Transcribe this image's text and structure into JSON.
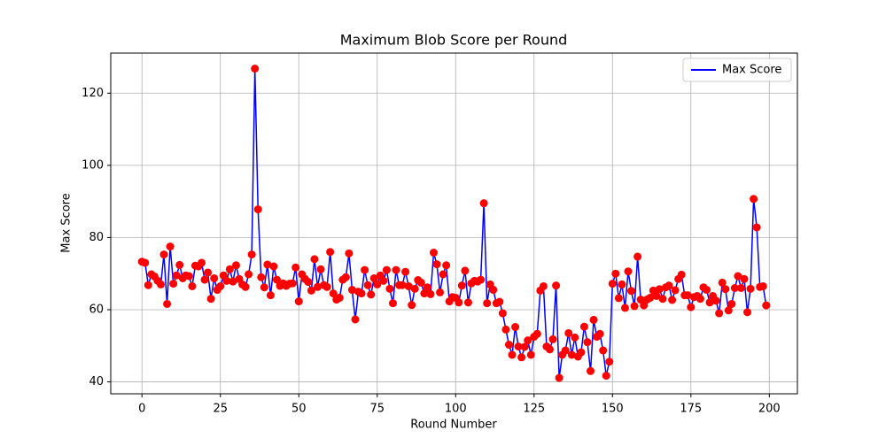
{
  "chart_data": {
    "type": "line",
    "title": "Maximum Blob Score per Round",
    "x_label": "Round Number",
    "y_label": "Max Score",
    "x": [
      0,
      1,
      2,
      3,
      4,
      5,
      6,
      7,
      8,
      9,
      10,
      11,
      12,
      13,
      14,
      15,
      16,
      17,
      18,
      19,
      20,
      21,
      22,
      23,
      24,
      25,
      26,
      27,
      28,
      29,
      30,
      31,
      32,
      33,
      34,
      35,
      36,
      37,
      38,
      39,
      40,
      41,
      42,
      43,
      44,
      45,
      46,
      47,
      48,
      49,
      50,
      51,
      52,
      53,
      54,
      55,
      56,
      57,
      58,
      59,
      60,
      61,
      62,
      63,
      64,
      65,
      66,
      67,
      68,
      69,
      70,
      71,
      72,
      73,
      74,
      75,
      76,
      77,
      78,
      79,
      80,
      81,
      82,
      83,
      84,
      85,
      86,
      87,
      88,
      89,
      90,
      91,
      92,
      93,
      94,
      95,
      96,
      97,
      98,
      99,
      100,
      101,
      102,
      103,
      104,
      105,
      106,
      107,
      108,
      109,
      110,
      111,
      112,
      113,
      114,
      115,
      116,
      117,
      118,
      119,
      120,
      121,
      122,
      123,
      124,
      125,
      126,
      127,
      128,
      129,
      130,
      131,
      132,
      133,
      134,
      135,
      136,
      137,
      138,
      139,
      140,
      141,
      142,
      143,
      144,
      145,
      146,
      147,
      148,
      149,
      150,
      151,
      152,
      153,
      154,
      155,
      156,
      157,
      158,
      159,
      160,
      161,
      162,
      163,
      164,
      165,
      166,
      167,
      168,
      169,
      170,
      171,
      172,
      173,
      174,
      175,
      176,
      177,
      178,
      179,
      180,
      181,
      182,
      183,
      184,
      185,
      186,
      187,
      188,
      189,
      190,
      191,
      192,
      193,
      194,
      195,
      196,
      197,
      198,
      199
    ],
    "series": [
      {
        "name": "Max Score",
        "color": "blue",
        "marker_color": "red",
        "values": [
          73.3,
          73,
          66.8,
          69.8,
          69.2,
          68,
          67,
          75.3,
          61.6,
          77.5,
          67.2,
          69.5,
          72.4,
          68.7,
          69.5,
          69.3,
          66.5,
          72.2,
          72,
          73,
          68.3,
          70.3,
          63,
          68.7,
          65.5,
          66.5,
          69.5,
          68,
          71.2,
          67.8,
          72.3,
          68.5,
          67,
          66.3,
          69.8,
          75.3,
          126.8,
          87.8,
          69,
          66.2,
          72.5,
          64,
          72,
          68.3,
          66.6,
          67.3,
          66.6,
          67.2,
          67.3,
          71.7,
          62.3,
          69.8,
          68.5,
          67.7,
          65.3,
          74,
          66.3,
          71.2,
          66.8,
          66.3,
          76,
          64.5,
          62.8,
          63.3,
          68.3,
          69,
          75.6,
          65.5,
          57.3,
          65,
          64.5,
          71,
          66.8,
          64.2,
          68.7,
          67,
          69.5,
          68,
          71,
          65.8,
          61.8,
          71,
          66.8,
          66.8,
          70.5,
          66.5,
          61.3,
          65.8,
          68.2,
          67.5,
          64.5,
          66.2,
          64.3,
          75.8,
          72.6,
          64.8,
          69.8,
          72.3,
          62.3,
          63.5,
          63.3,
          62,
          66.7,
          70.8,
          62,
          67.3,
          68,
          67.8,
          68.3,
          89.5,
          61.8,
          67,
          65.5,
          61.8,
          62.2,
          59,
          54.5,
          50.3,
          47.5,
          55.2,
          49.8,
          46.8,
          49.7,
          51.5,
          47.5,
          52.5,
          53.3,
          65.3,
          66.5,
          49.8,
          49,
          51.8,
          66.7,
          41.1,
          47.5,
          48.7,
          53.5,
          47.5,
          52.3,
          47,
          48.2,
          55.3,
          51,
          43,
          57.2,
          52.5,
          53.3,
          48.7,
          41.7,
          45.6,
          67.2,
          70,
          63.2,
          67,
          60.5,
          70.6,
          65.2,
          61,
          74.7,
          62.8,
          61.2,
          62.8,
          63.3,
          65.3,
          63.8,
          65.7,
          63,
          66.2,
          66.7,
          62.7,
          65.4,
          68.5,
          69.7,
          64,
          64,
          60.7,
          63.5,
          63.8,
          63,
          66.2,
          65.5,
          62,
          63.8,
          62.5,
          59,
          67.5,
          65.7,
          59.8,
          61.6,
          66,
          69.3,
          66,
          68.5,
          59.3,
          65.8,
          90.7,
          82.8,
          66.3,
          66.5,
          61.2
        ]
      }
    ],
    "xlim": [
      -9.95,
      208.95
    ],
    "ylim": [
      36.7,
      131.1
    ],
    "xticks": [
      0,
      25,
      50,
      75,
      100,
      125,
      150,
      175,
      200
    ],
    "yticks": [
      40,
      60,
      80,
      100,
      120
    ],
    "grid": true,
    "legend": "upper right"
  }
}
